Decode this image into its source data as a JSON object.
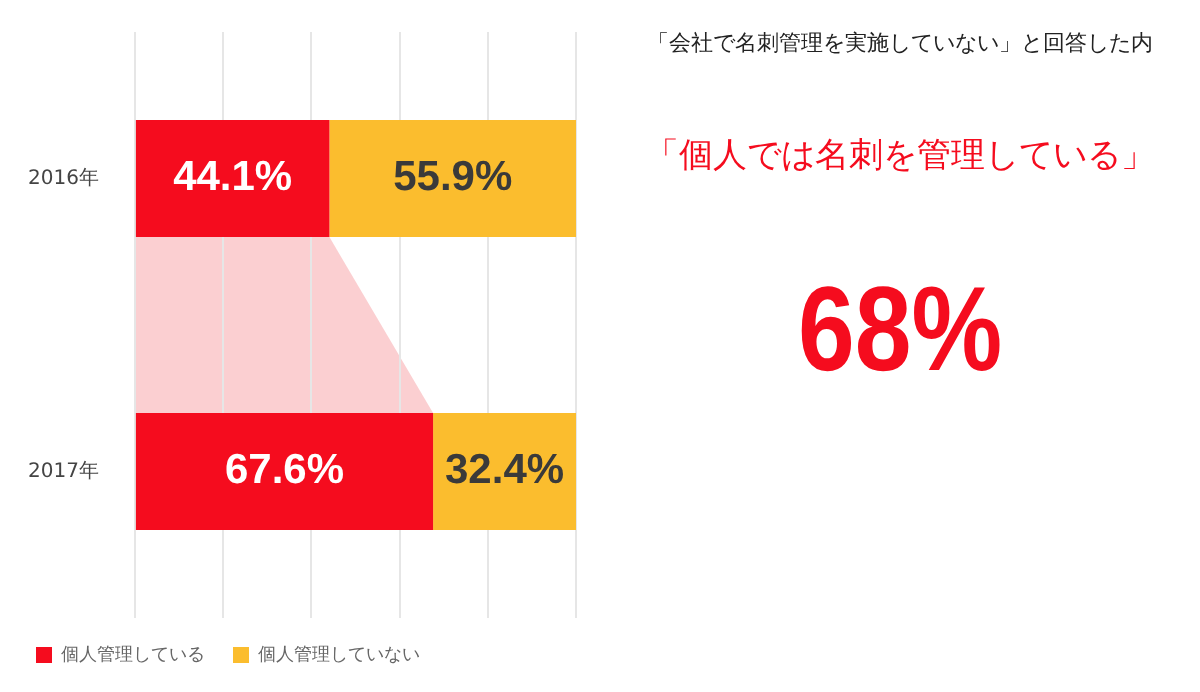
{
  "chart_data": {
    "type": "bar",
    "orientation": "horizontal",
    "stacked": true,
    "categories": [
      "2016年",
      "2017年"
    ],
    "series": [
      {
        "name": "個人管理している",
        "color": "#f50c1e",
        "values": [
          44.1,
          67.6
        ],
        "value_labels": [
          "44.1%",
          "67.6%"
        ]
      },
      {
        "name": "個人管理していない",
        "color": "#fbbd2e",
        "values": [
          55.9,
          32.4
        ],
        "value_labels": [
          "55.9%",
          "32.4%"
        ]
      }
    ],
    "xlim": [
      0,
      100
    ],
    "xticks": [
      {
        "value": 0,
        "label": null
      },
      {
        "value": 20,
        "label": null
      },
      {
        "value": 40,
        "label": null
      },
      {
        "value": 60,
        "label": null
      },
      {
        "value": 80,
        "label": null
      },
      {
        "value": 100,
        "label": null
      }
    ],
    "grid": "x",
    "tick_labels": "y",
    "legend": "bottom",
    "annotations": [
      "「会社で名刺管理を実施していない」と回答した内",
      "「個人では名刺を管理している」",
      "68%"
    ]
  }
}
